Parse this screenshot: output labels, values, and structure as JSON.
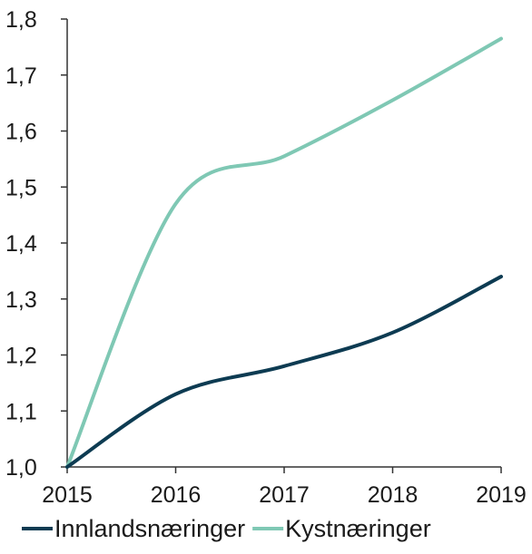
{
  "chart_data": {
    "type": "line",
    "title": "",
    "xlabel": "",
    "ylabel": "",
    "x": [
      "2015",
      "2016",
      "2017",
      "2018",
      "2019"
    ],
    "y_ticks": [
      "1,0",
      "1,1",
      "1,2",
      "1,3",
      "1,4",
      "1,5",
      "1,6",
      "1,7",
      "1,8"
    ],
    "ylim": [
      1.0,
      1.8
    ],
    "grid": false,
    "legend_position": "bottom",
    "series": [
      {
        "name": "Innlandsnæringer",
        "color": "#0d3b52",
        "values": [
          1.0,
          1.13,
          1.18,
          1.24,
          1.34
        ]
      },
      {
        "name": "Kystnæringer",
        "color": "#7fc8b4",
        "values": [
          1.0,
          1.47,
          1.555,
          1.655,
          1.765
        ]
      }
    ]
  }
}
